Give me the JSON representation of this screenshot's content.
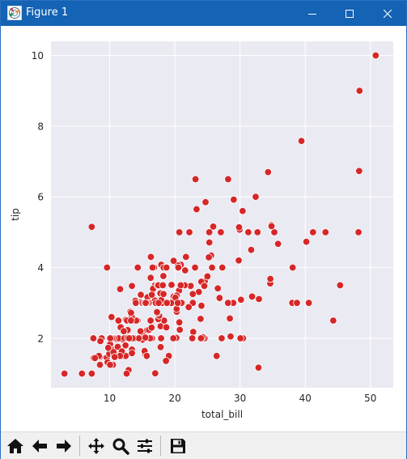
{
  "window": {
    "title": "Figure 1",
    "icons": [
      "matplotlib-figure-icon",
      "minimize-icon",
      "maximize-icon",
      "close-icon"
    ]
  },
  "toolbar": {
    "tools": [
      "home-icon",
      "back-arrow-icon",
      "forward-arrow-icon",
      "pan-icon",
      "zoom-icon",
      "configure-subplots-icon",
      "save-icon"
    ]
  },
  "colors": {
    "titlebar": "#1463b4",
    "plot_background": "#eaeaf2",
    "grid": "#ffffff",
    "marker": "#d62728",
    "marker_edge": "#ffffff",
    "text": "#262626"
  },
  "chart_data": {
    "type": "scatter",
    "xlabel": "total_bill",
    "ylabel": "tip",
    "xlim": [
      1.0,
      53.5
    ],
    "ylim": [
      0.6,
      10.4
    ],
    "xticks": [
      10,
      20,
      30,
      40,
      50
    ],
    "yticks": [
      2,
      4,
      6,
      8,
      10
    ],
    "xtick_labels": [
      "10",
      "20",
      "30",
      "40",
      "50"
    ],
    "ytick_labels": [
      "2",
      "4",
      "6",
      "8",
      "10"
    ],
    "grid": true,
    "legend": "none",
    "points": [
      [
        16.99,
        1.01
      ],
      [
        10.34,
        1.66
      ],
      [
        21.01,
        3.5
      ],
      [
        23.68,
        3.31
      ],
      [
        24.59,
        3.61
      ],
      [
        25.29,
        4.71
      ],
      [
        8.77,
        2.0
      ],
      [
        26.88,
        3.12
      ],
      [
        15.04,
        1.96
      ],
      [
        14.78,
        3.23
      ],
      [
        10.27,
        1.71
      ],
      [
        35.26,
        5.0
      ],
      [
        15.42,
        1.57
      ],
      [
        18.43,
        3.0
      ],
      [
        14.83,
        3.02
      ],
      [
        21.58,
        3.92
      ],
      [
        10.33,
        1.67
      ],
      [
        16.29,
        3.71
      ],
      [
        16.97,
        3.5
      ],
      [
        20.65,
        3.35
      ],
      [
        17.92,
        4.08
      ],
      [
        20.29,
        2.75
      ],
      [
        15.77,
        2.23
      ],
      [
        39.42,
        7.58
      ],
      [
        19.82,
        3.18
      ],
      [
        17.81,
        2.34
      ],
      [
        13.37,
        2.0
      ],
      [
        12.69,
        2.0
      ],
      [
        21.7,
        4.3
      ],
      [
        19.65,
        3.0
      ],
      [
        9.55,
        1.45
      ],
      [
        18.35,
        2.5
      ],
      [
        15.06,
        3.0
      ],
      [
        20.69,
        2.45
      ],
      [
        17.78,
        3.27
      ],
      [
        24.06,
        3.6
      ],
      [
        16.31,
        2.0
      ],
      [
        16.93,
        3.07
      ],
      [
        18.69,
        2.31
      ],
      [
        31.27,
        5.0
      ],
      [
        16.04,
        2.24
      ],
      [
        17.46,
        2.54
      ],
      [
        13.94,
        3.06
      ],
      [
        9.68,
        1.32
      ],
      [
        30.4,
        5.6
      ],
      [
        18.29,
        3.0
      ],
      [
        22.23,
        5.0
      ],
      [
        32.4,
        6.0
      ],
      [
        28.55,
        2.05
      ],
      [
        18.04,
        3.0
      ],
      [
        12.54,
        2.5
      ],
      [
        10.29,
        2.6
      ],
      [
        34.81,
        5.2
      ],
      [
        9.94,
        1.56
      ],
      [
        25.56,
        4.34
      ],
      [
        19.49,
        3.51
      ],
      [
        38.01,
        3.0
      ],
      [
        26.41,
        1.5
      ],
      [
        11.24,
        1.76
      ],
      [
        48.27,
        6.73
      ],
      [
        20.29,
        3.21
      ],
      [
        13.81,
        2.0
      ],
      [
        11.02,
        1.98
      ],
      [
        18.29,
        3.76
      ],
      [
        17.59,
        2.64
      ],
      [
        20.08,
        3.15
      ],
      [
        16.45,
        2.47
      ],
      [
        3.07,
        1.0
      ],
      [
        20.23,
        2.01
      ],
      [
        15.01,
        2.09
      ],
      [
        12.02,
        1.97
      ],
      [
        17.07,
        3.0
      ],
      [
        26.86,
        3.14
      ],
      [
        25.28,
        5.0
      ],
      [
        14.73,
        2.2
      ],
      [
        10.51,
        1.25
      ],
      [
        17.92,
        3.08
      ],
      [
        27.2,
        4.0
      ],
      [
        22.76,
        3.0
      ],
      [
        17.29,
        2.71
      ],
      [
        19.44,
        3.0
      ],
      [
        16.66,
        3.4
      ],
      [
        10.07,
        1.83
      ],
      [
        32.68,
        5.0
      ],
      [
        15.98,
        2.03
      ],
      [
        34.83,
        5.17
      ],
      [
        13.03,
        2.0
      ],
      [
        18.28,
        4.0
      ],
      [
        24.71,
        5.85
      ],
      [
        21.16,
        3.0
      ],
      [
        28.97,
        3.0
      ],
      [
        22.49,
        3.5
      ],
      [
        5.75,
        1.0
      ],
      [
        16.32,
        4.3
      ],
      [
        22.75,
        3.25
      ],
      [
        40.17,
        4.73
      ],
      [
        27.28,
        4.0
      ],
      [
        12.03,
        1.5
      ],
      [
        21.01,
        3.0
      ],
      [
        12.46,
        1.5
      ],
      [
        11.35,
        2.5
      ],
      [
        15.38,
        3.0
      ],
      [
        44.3,
        2.5
      ],
      [
        22.42,
        3.48
      ],
      [
        20.92,
        4.08
      ],
      [
        15.36,
        1.64
      ],
      [
        20.49,
        4.06
      ],
      [
        25.21,
        4.29
      ],
      [
        18.24,
        3.76
      ],
      [
        14.31,
        4.0
      ],
      [
        14.0,
        3.0
      ],
      [
        7.25,
        1.0
      ],
      [
        38.07,
        4.0
      ],
      [
        23.95,
        2.55
      ],
      [
        25.71,
        4.0
      ],
      [
        17.31,
        3.5
      ],
      [
        29.93,
        5.07
      ],
      [
        10.65,
        1.5
      ],
      [
        12.43,
        1.8
      ],
      [
        24.08,
        2.92
      ],
      [
        11.69,
        2.31
      ],
      [
        13.42,
        1.68
      ],
      [
        14.26,
        2.5
      ],
      [
        15.95,
        2.0
      ],
      [
        12.48,
        2.52
      ],
      [
        29.8,
        4.2
      ],
      [
        8.52,
        1.48
      ],
      [
        14.52,
        2.0
      ],
      [
        11.38,
        2.0
      ],
      [
        22.82,
        2.18
      ],
      [
        19.08,
        1.5
      ],
      [
        20.27,
        2.83
      ],
      [
        11.17,
        1.5
      ],
      [
        12.26,
        2.0
      ],
      [
        18.26,
        3.25
      ],
      [
        8.51,
        1.25
      ],
      [
        10.33,
        2.0
      ],
      [
        14.15,
        2.0
      ],
      [
        16.0,
        2.0
      ],
      [
        13.16,
        2.75
      ],
      [
        17.47,
        3.5
      ],
      [
        34.3,
        6.7
      ],
      [
        41.19,
        5.0
      ],
      [
        27.05,
        5.0
      ],
      [
        16.43,
        2.3
      ],
      [
        8.35,
        1.5
      ],
      [
        18.64,
        1.36
      ],
      [
        11.87,
        1.63
      ],
      [
        9.78,
        1.73
      ],
      [
        7.51,
        2.0
      ],
      [
        14.07,
        2.5
      ],
      [
        13.13,
        2.0
      ],
      [
        17.26,
        2.74
      ],
      [
        24.55,
        2.0
      ],
      [
        19.77,
        2.0
      ],
      [
        29.85,
        5.14
      ],
      [
        48.17,
        5.0
      ],
      [
        25.0,
        3.75
      ],
      [
        13.39,
        2.61
      ],
      [
        16.49,
        2.0
      ],
      [
        21.5,
        3.5
      ],
      [
        12.66,
        2.5
      ],
      [
        16.21,
        2.0
      ],
      [
        13.81,
        2.0
      ],
      [
        17.51,
        3.0
      ],
      [
        24.52,
        3.48
      ],
      [
        20.76,
        2.24
      ],
      [
        31.71,
        4.5
      ],
      [
        10.59,
        1.61
      ],
      [
        10.63,
        2.0
      ],
      [
        50.81,
        10.0
      ],
      [
        15.81,
        3.16
      ],
      [
        7.25,
        5.15
      ],
      [
        31.85,
        3.18
      ],
      [
        16.82,
        4.0
      ],
      [
        32.9,
        3.11
      ],
      [
        17.89,
        2.0
      ],
      [
        14.48,
        2.0
      ],
      [
        9.6,
        4.0
      ],
      [
        34.63,
        3.55
      ],
      [
        34.65,
        3.68
      ],
      [
        23.33,
        5.65
      ],
      [
        45.35,
        3.5
      ],
      [
        23.17,
        6.5
      ],
      [
        40.55,
        3.0
      ],
      [
        20.69,
        5.0
      ],
      [
        20.9,
        3.5
      ],
      [
        30.46,
        2.0
      ],
      [
        18.15,
        3.5
      ],
      [
        23.1,
        4.0
      ],
      [
        15.69,
        1.5
      ],
      [
        19.81,
        4.19
      ],
      [
        28.44,
        2.56
      ],
      [
        15.48,
        2.02
      ],
      [
        16.58,
        4.0
      ],
      [
        7.56,
        1.44
      ],
      [
        10.34,
        2.0
      ],
      [
        43.11,
        5.0
      ],
      [
        13.0,
        2.0
      ],
      [
        13.51,
        2.0
      ],
      [
        18.71,
        4.0
      ],
      [
        12.74,
        2.01
      ],
      [
        13.0,
        2.0
      ],
      [
        16.4,
        2.5
      ],
      [
        20.53,
        4.0
      ],
      [
        16.47,
        3.23
      ],
      [
        26.59,
        3.41
      ],
      [
        38.73,
        3.0
      ],
      [
        24.27,
        2.03
      ],
      [
        12.76,
        2.23
      ],
      [
        30.06,
        2.0
      ],
      [
        25.89,
        5.16
      ],
      [
        48.33,
        9.0
      ],
      [
        13.27,
        2.5
      ],
      [
        28.17,
        6.5
      ],
      [
        12.9,
        1.1
      ],
      [
        28.15,
        3.0
      ],
      [
        11.59,
        1.5
      ],
      [
        7.74,
        1.44
      ],
      [
        30.14,
        3.09
      ],
      [
        12.16,
        2.2
      ],
      [
        13.42,
        3.48
      ],
      [
        8.58,
        1.92
      ],
      [
        15.98,
        3.0
      ],
      [
        13.42,
        1.58
      ],
      [
        16.27,
        2.5
      ],
      [
        10.09,
        2.0
      ],
      [
        20.45,
        3.0
      ],
      [
        13.28,
        2.72
      ],
      [
        22.12,
        2.88
      ],
      [
        24.01,
        2.0
      ],
      [
        15.69,
        3.0
      ],
      [
        11.61,
        3.39
      ],
      [
        10.77,
        1.47
      ],
      [
        15.53,
        3.0
      ],
      [
        10.07,
        1.25
      ],
      [
        12.6,
        1.0
      ],
      [
        32.83,
        1.17
      ],
      [
        35.83,
        4.67
      ],
      [
        29.03,
        5.92
      ],
      [
        27.18,
        2.0
      ],
      [
        22.67,
        2.0
      ],
      [
        17.82,
        1.75
      ],
      [
        18.78,
        3.0
      ]
    ]
  }
}
